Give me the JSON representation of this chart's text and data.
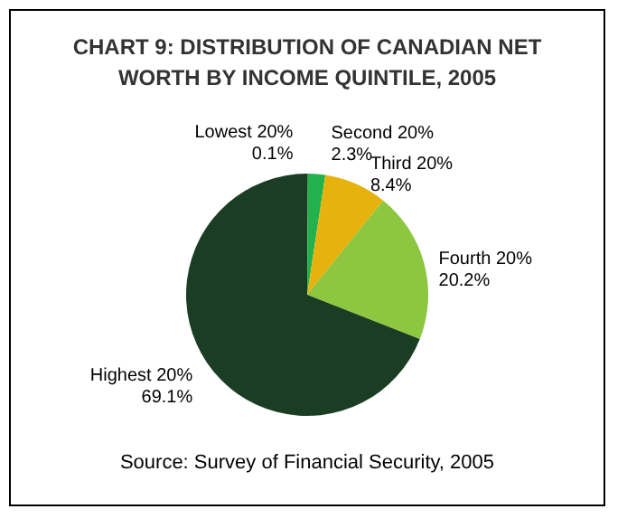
{
  "chart_data": {
    "type": "pie",
    "title": "CHART 9: DISTRIBUTION OF CANADIAN NET WORTH BY INCOME QUINTILE, 2005",
    "categories": [
      "Lowest 20%",
      "Second 20%",
      "Third 20%",
      "Fourth 20%",
      "Highest 20%"
    ],
    "values": [
      0.1,
      2.3,
      8.4,
      20.2,
      69.1
    ],
    "value_labels": [
      "0.1%",
      "2.3%",
      "8.4%",
      "20.2%",
      "69.1%"
    ],
    "colors": [
      "#2a6b35",
      "#22b14c",
      "#e6b20e",
      "#8dc63f",
      "#1a3d24"
    ],
    "legend": false,
    "annotations": [
      "Source: Survey of Financial Security, 2005"
    ]
  }
}
